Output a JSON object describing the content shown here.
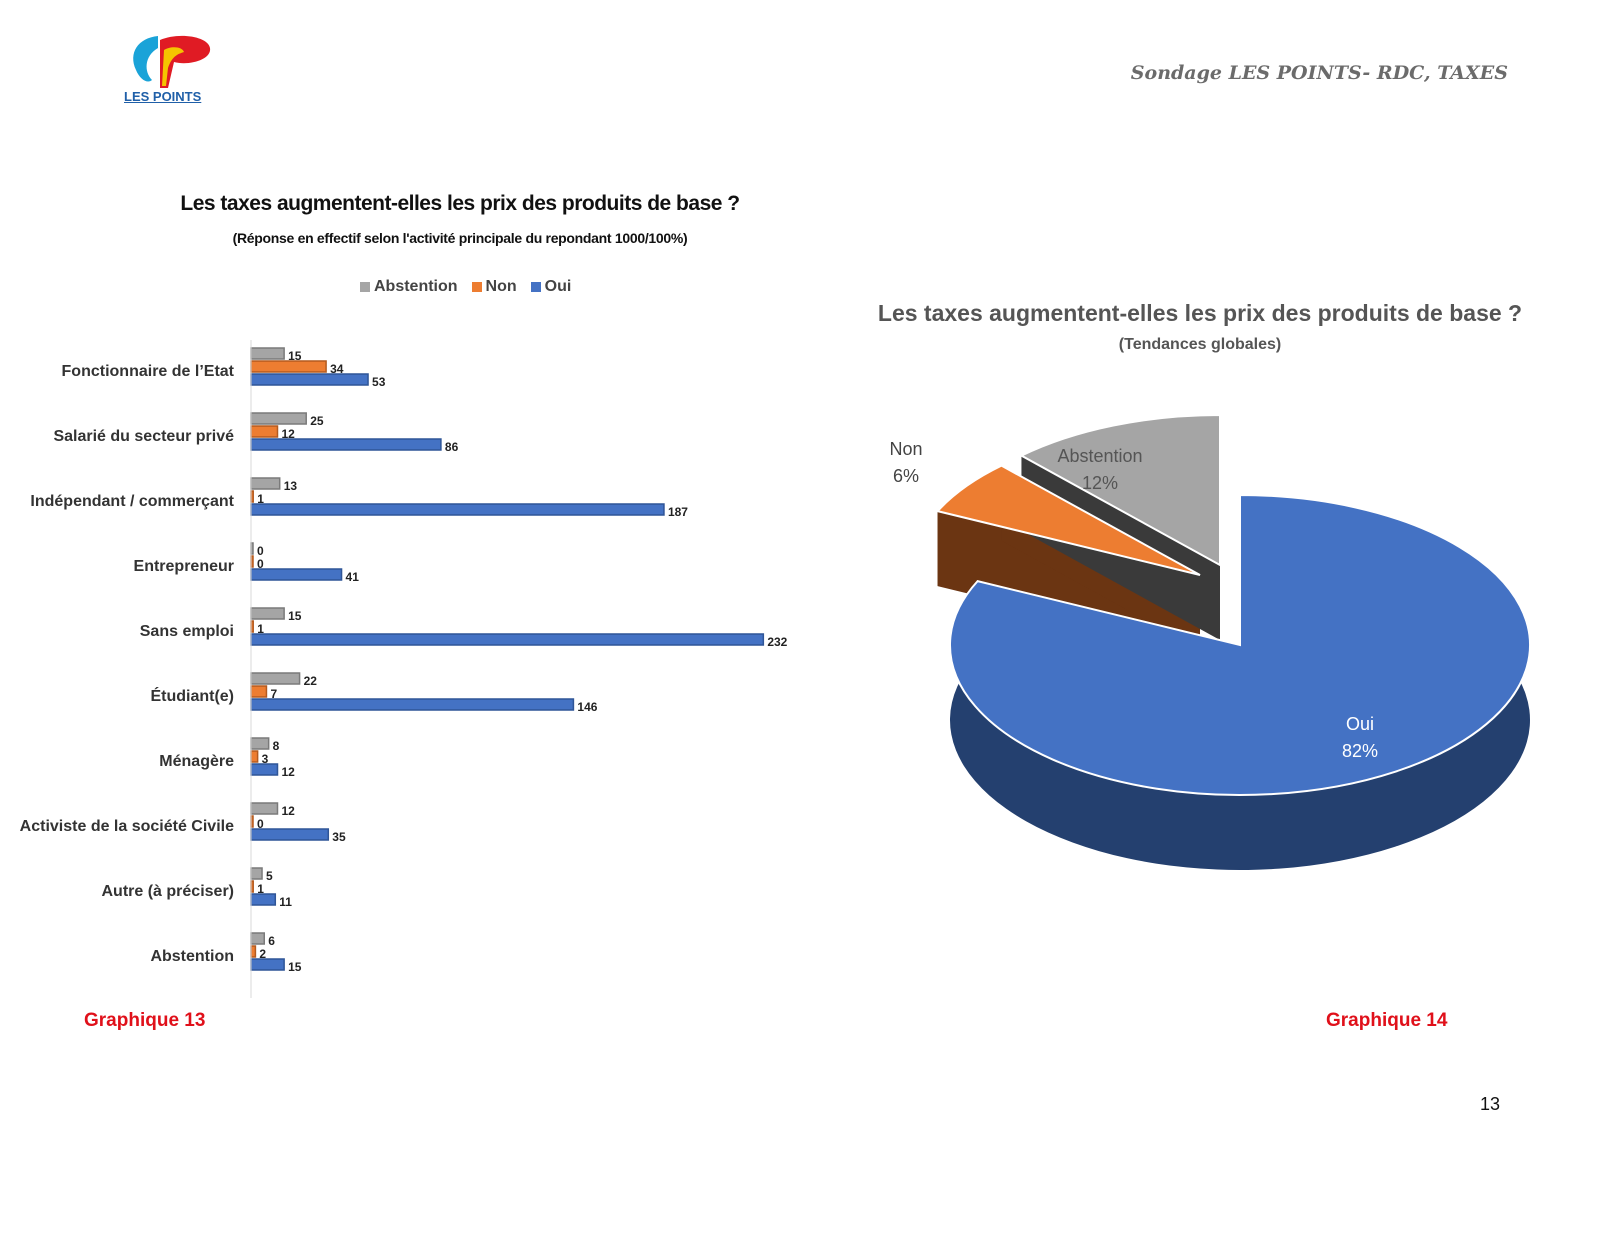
{
  "header": {
    "logo_text": "LES POINTS",
    "title": "Sondage LES POINTS- RDC, TAXES"
  },
  "colors": {
    "abstention": "#a5a5a5",
    "non": "#ed7d31",
    "oui": "#4472c4",
    "caption": "#e0101a"
  },
  "chart_data": [
    {
      "type": "bar",
      "orientation": "horizontal",
      "title": "Les taxes augmentent-elles les prix des produits de base ?",
      "subtitle": "(Réponse en effectif selon l'activité principale du repondant 1000/100%)",
      "categories": [
        "Fonctionnaire de l’Etat",
        "Salarié du secteur privé",
        "Indépendant / commerçant",
        "Entrepreneur",
        "Sans emploi",
        "Étudiant(e)",
        "Ménagère",
        "Activiste de la société Civile",
        "Autre (à préciser)",
        "Abstention"
      ],
      "series": [
        {
          "name": "Abstention",
          "values": [
            15,
            25,
            13,
            0,
            15,
            22,
            8,
            12,
            5,
            6
          ]
        },
        {
          "name": "Non",
          "values": [
            34,
            12,
            1,
            0,
            1,
            7,
            3,
            0,
            1,
            2
          ]
        },
        {
          "name": "Oui",
          "values": [
            53,
            86,
            187,
            41,
            232,
            146,
            12,
            35,
            11,
            15
          ]
        }
      ],
      "legend": [
        "Abstention",
        "Non",
        "Oui"
      ],
      "legend_position": "top",
      "xlim": [
        0,
        240
      ],
      "caption": "Graphique 13"
    },
    {
      "type": "pie",
      "title": "Les taxes augmentent-elles les prix des produits de base ?",
      "subtitle": "(Tendances globales)",
      "slices": [
        {
          "label": "Oui",
          "value": 82,
          "value_label": "82%"
        },
        {
          "label": "Non",
          "value": 6,
          "value_label": "6%"
        },
        {
          "label": "Abstention",
          "value": 12,
          "value_label": "12%"
        }
      ],
      "caption": "Graphique 14"
    }
  ],
  "footer": {
    "page_number": "13"
  }
}
